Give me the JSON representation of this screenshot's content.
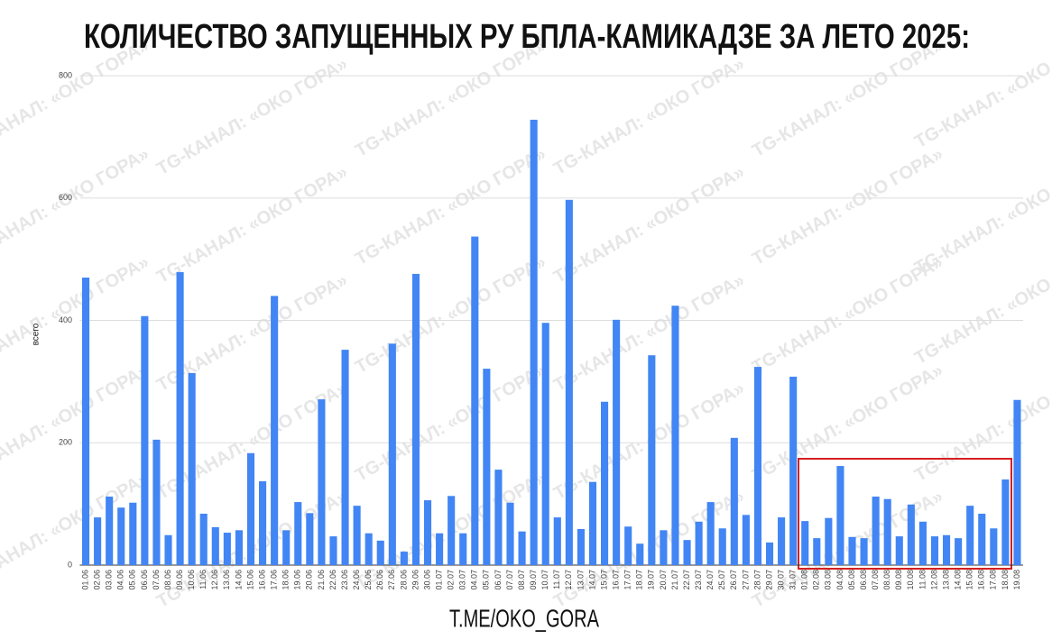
{
  "chart_data": {
    "type": "bar",
    "title": "КОЛИЧЕСТВО ЗАПУЩЕННЫХ РУ БПЛА-КАМИКАДЗЕ ЗА ЛЕТО 2025:",
    "y_label": "всего",
    "footer": "T.ME/OKO_GORA",
    "watermark": "TG-КАНАЛ: «ОКО ГОРА»",
    "color": "#4285f4",
    "ylim": [
      0,
      800
    ],
    "yticks": [
      0,
      200,
      400,
      600,
      800
    ],
    "grid": true,
    "categories": [
      "01.06",
      "02.06",
      "03.06",
      "04.06",
      "05.06",
      "06.06",
      "07.06",
      "08.06",
      "09.06",
      "10.06",
      "11.06",
      "12.06",
      "13.06",
      "14.06",
      "15.06",
      "16.06",
      "17.06",
      "18.06",
      "19.06",
      "20.06",
      "21.06",
      "22.06",
      "23.06",
      "24.06",
      "25.06",
      "26.06",
      "27.06",
      "28.06",
      "29.06",
      "30.06",
      "01.07",
      "02.07",
      "03.07",
      "04.07",
      "05.07",
      "06.07",
      "07.07",
      "08.07",
      "09.07",
      "10.07",
      "11.07",
      "12.07",
      "13.07",
      "14.07",
      "15.07",
      "16.07",
      "17.07",
      "18.07",
      "19.07",
      "20.07",
      "21.07",
      "22.07",
      "23.07",
      "24.07",
      "25.07",
      "26.07",
      "27.07",
      "28.07",
      "29.07",
      "30.07",
      "31.07",
      "01.08",
      "02.08",
      "03.08",
      "04.08",
      "05.08",
      "06.08",
      "07.08",
      "08.08",
      "09.08",
      "10.08",
      "11.08",
      "12.08",
      "13.08",
      "14.08",
      "15.08",
      "16.08",
      "17.08",
      "18.08",
      "19.08"
    ],
    "values": [
      470,
      78,
      112,
      94,
      102,
      407,
      205,
      49,
      479,
      314,
      84,
      62,
      53,
      57,
      183,
      137,
      440,
      57,
      103,
      85,
      271,
      47,
      352,
      97,
      52,
      40,
      362,
      22,
      476,
      106,
      52,
      113,
      52,
      537,
      321,
      156,
      102,
      55,
      728,
      396,
      78,
      597,
      59,
      136,
      267,
      401,
      63,
      35,
      343,
      57,
      424,
      41,
      71,
      103,
      60,
      208,
      82,
      324,
      37,
      78,
      308,
      72,
      44,
      77,
      162,
      46,
      44,
      112,
      108,
      47,
      99,
      71,
      47,
      49,
      44,
      97,
      84,
      60,
      140,
      270
    ]
  }
}
